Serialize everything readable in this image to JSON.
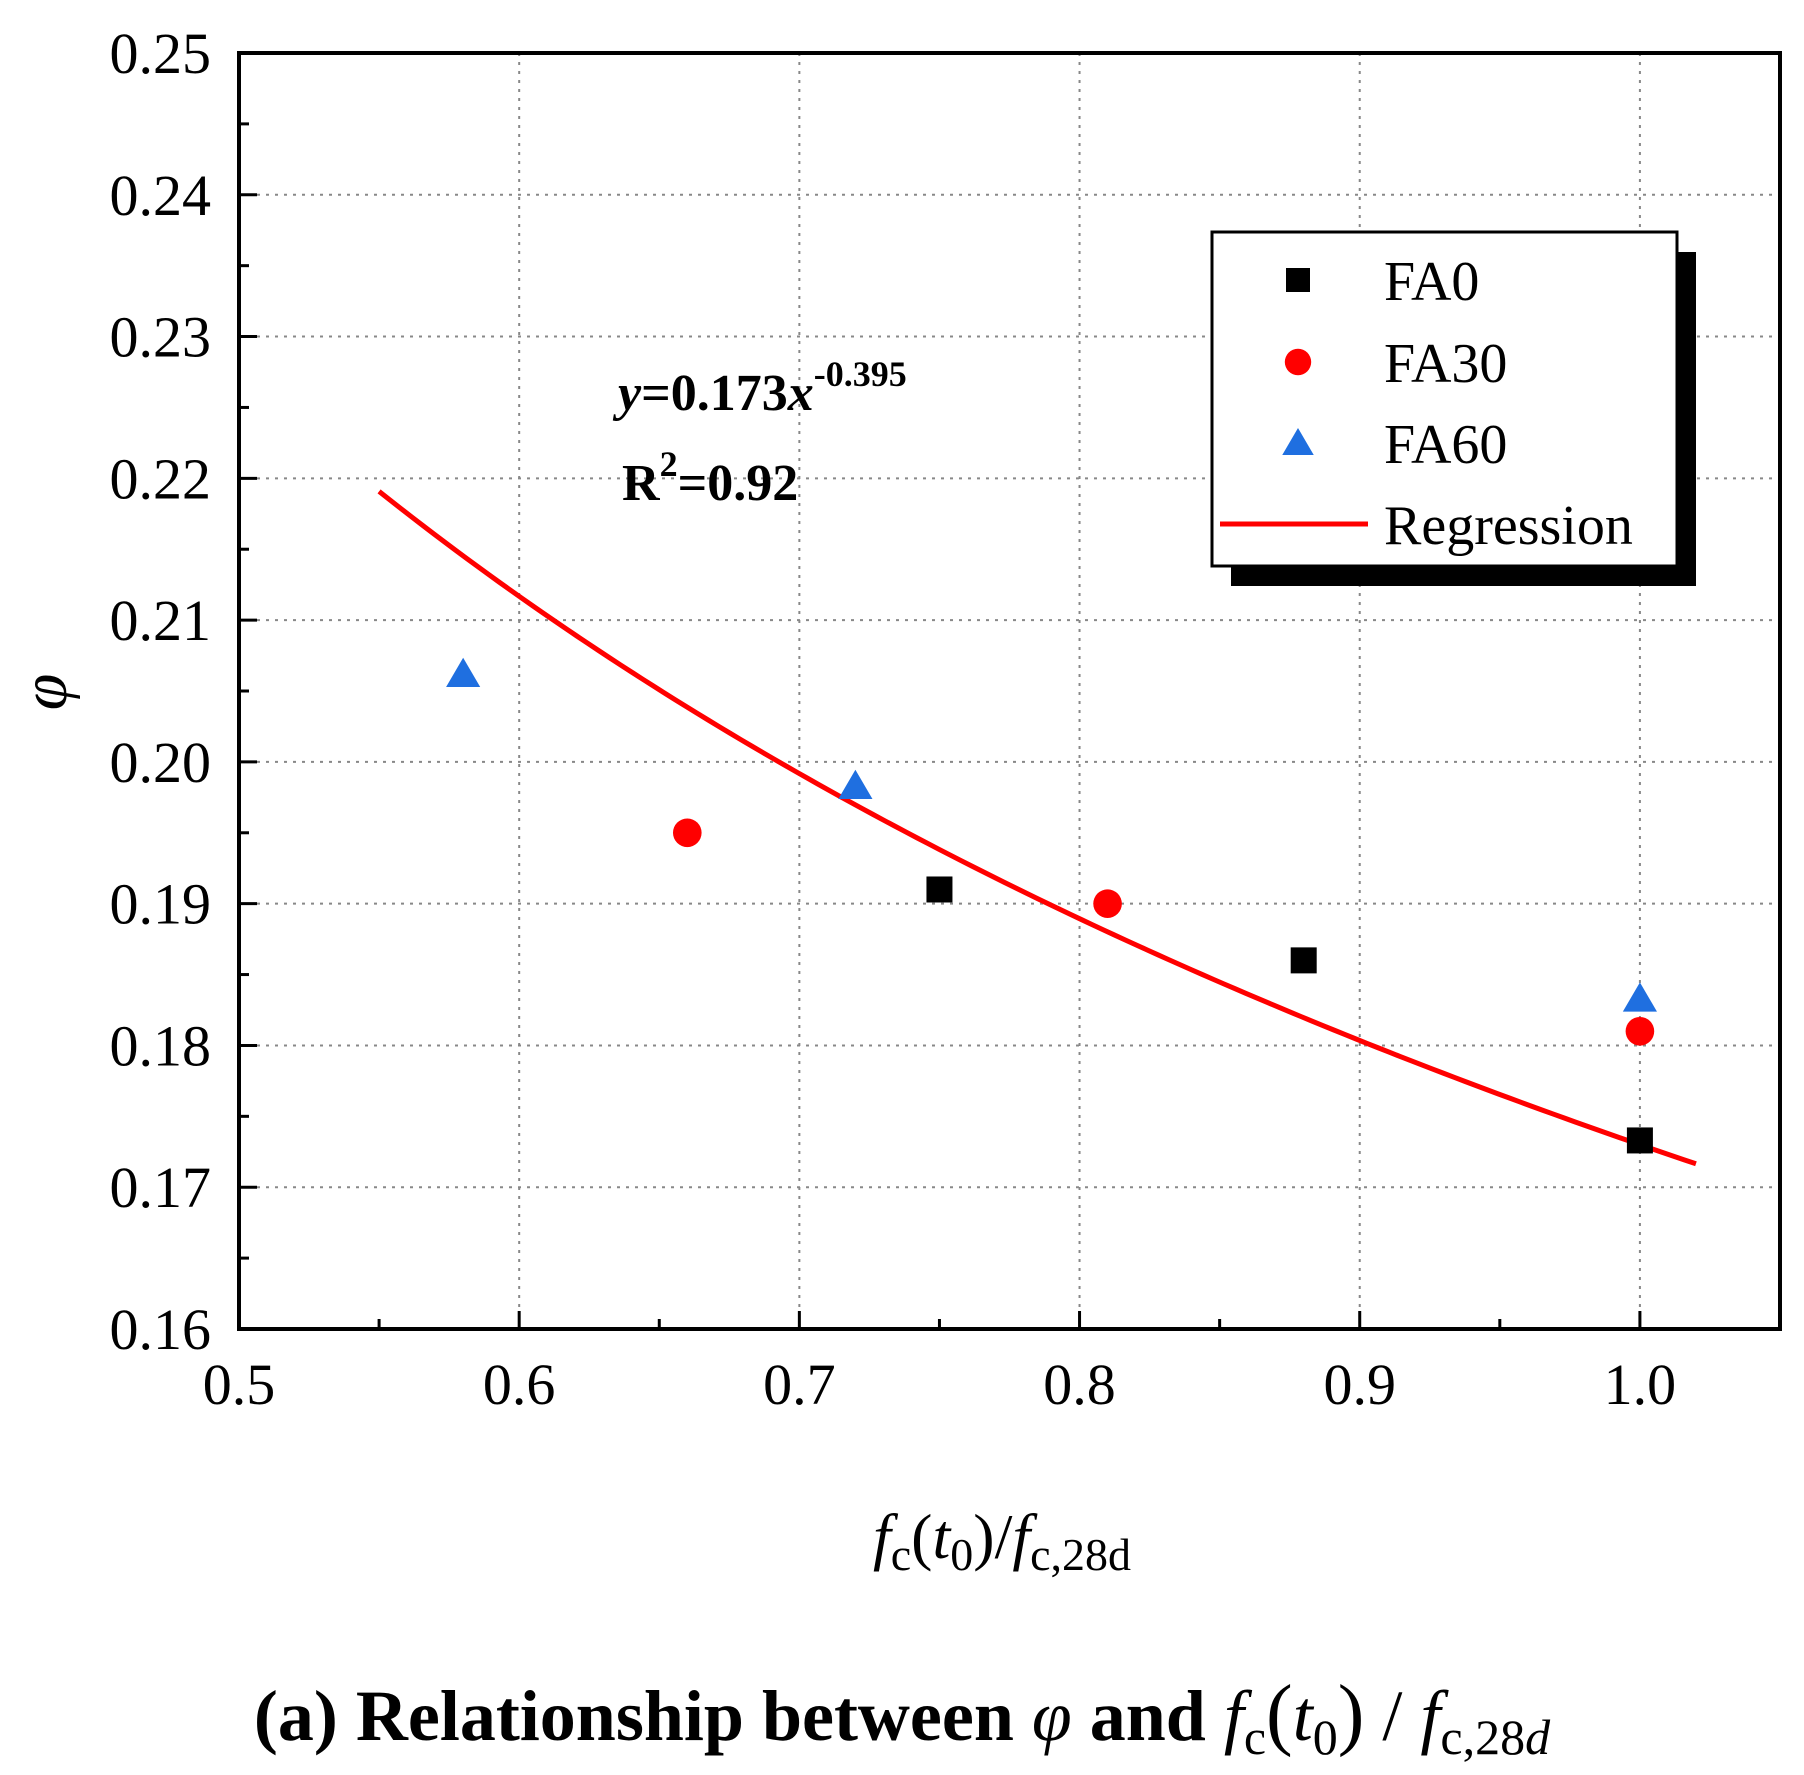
{
  "chart_data": {
    "type": "scatter",
    "xlabel": {
      "italic_base1": "f",
      "sub1": "c",
      "paren_open": "(",
      "italic_t": "t",
      "sub_t": "0",
      "paren_close": ")/",
      "italic_base2": "f",
      "sub2": "c,28d"
    },
    "ylabel": "φ",
    "xlim": [
      0.5,
      1.05
    ],
    "ylim": [
      0.16,
      0.25
    ],
    "xticks": [
      0.5,
      0.6,
      0.7,
      0.8,
      0.9,
      1.0
    ],
    "xtick_labels": [
      "0.5",
      "0.6",
      "0.7",
      "0.8",
      "0.9",
      "1.0"
    ],
    "yticks": [
      0.16,
      0.17,
      0.18,
      0.19,
      0.2,
      0.21,
      0.22,
      0.23,
      0.24,
      0.25
    ],
    "ytick_labels": [
      "0.16",
      "0.17",
      "0.18",
      "0.19",
      "0.20",
      "0.21",
      "0.22",
      "0.23",
      "0.24",
      "0.25"
    ],
    "grid": true,
    "legend_position": "top-right",
    "series": [
      {
        "name": "FA0",
        "marker": "square",
        "color": "#000000",
        "points": [
          [
            0.75,
            0.191
          ],
          [
            0.88,
            0.186
          ],
          [
            1.0,
            0.1733
          ]
        ]
      },
      {
        "name": "FA30",
        "marker": "circle",
        "color": "#ff0000",
        "points": [
          [
            0.66,
            0.195
          ],
          [
            0.81,
            0.19
          ],
          [
            1.0,
            0.181
          ]
        ]
      },
      {
        "name": "FA60",
        "marker": "triangle",
        "color": "#1f6fe0",
        "points": [
          [
            0.58,
            0.2062
          ],
          [
            0.72,
            0.1983
          ],
          [
            1.0,
            0.1833
          ]
        ]
      }
    ],
    "regression": {
      "name": "Regression",
      "color": "#ff0000",
      "a": 0.173,
      "b": -0.395,
      "x_range": [
        0.55,
        1.02
      ]
    },
    "annotation": {
      "eq_y": "y",
      "eq_mid": "=0.173",
      "eq_x": "x",
      "eq_exp": "-0.395",
      "r_base": "R",
      "r_exp": "2",
      "r_val": "=0.92"
    }
  },
  "caption": {
    "prefix": "(a) Relationship between ",
    "phi": "φ",
    "and": " and ",
    "f1": "f",
    "c1": "c",
    "lparen": "(",
    "t": "t",
    "t_sub": "0",
    "rparen": ")",
    "slash": " / ",
    "f2": "f",
    "c2": "c,28",
    "d": "d"
  }
}
